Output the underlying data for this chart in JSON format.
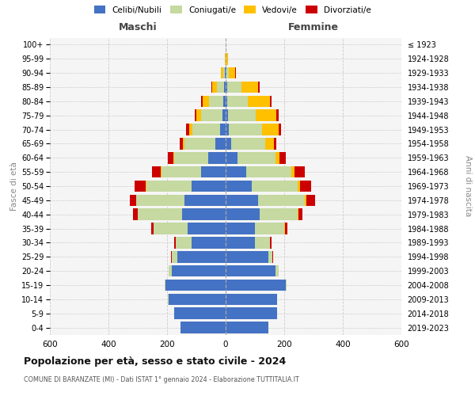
{
  "age_groups": [
    "0-4",
    "5-9",
    "10-14",
    "15-19",
    "20-24",
    "25-29",
    "30-34",
    "35-39",
    "40-44",
    "45-49",
    "50-54",
    "55-59",
    "60-64",
    "65-69",
    "70-74",
    "75-79",
    "80-84",
    "85-89",
    "90-94",
    "95-99",
    "100+"
  ],
  "birth_years": [
    "2019-2023",
    "2014-2018",
    "2009-2013",
    "2004-2008",
    "1999-2003",
    "1994-1998",
    "1989-1993",
    "1984-1988",
    "1979-1983",
    "1974-1978",
    "1969-1973",
    "1964-1968",
    "1959-1963",
    "1954-1958",
    "1949-1953",
    "1944-1948",
    "1939-1943",
    "1934-1938",
    "1929-1933",
    "1924-1928",
    "≤ 1923"
  ],
  "maschi": {
    "celibi": [
      155,
      175,
      195,
      205,
      185,
      165,
      115,
      130,
      150,
      140,
      115,
      85,
      60,
      35,
      18,
      10,
      8,
      5,
      2,
      0,
      0
    ],
    "coniugati": [
      0,
      2,
      2,
      2,
      10,
      20,
      55,
      115,
      150,
      165,
      155,
      135,
      115,
      105,
      95,
      75,
      50,
      25,
      5,
      0,
      0
    ],
    "vedovi": [
      0,
      0,
      0,
      0,
      0,
      0,
      0,
      0,
      1,
      1,
      2,
      2,
      4,
      5,
      10,
      15,
      20,
      15,
      8,
      2,
      0
    ],
    "divorziati": [
      0,
      0,
      0,
      0,
      0,
      2,
      5,
      10,
      15,
      20,
      40,
      30,
      18,
      12,
      12,
      5,
      5,
      3,
      2,
      0,
      0
    ]
  },
  "femmine": {
    "nubili": [
      145,
      175,
      175,
      205,
      170,
      145,
      100,
      100,
      115,
      110,
      90,
      70,
      40,
      20,
      10,
      8,
      5,
      5,
      2,
      0,
      0
    ],
    "coniugate": [
      0,
      2,
      2,
      2,
      10,
      15,
      50,
      100,
      130,
      160,
      155,
      155,
      130,
      115,
      115,
      95,
      70,
      50,
      10,
      2,
      0
    ],
    "vedove": [
      0,
      0,
      0,
      0,
      0,
      0,
      2,
      2,
      3,
      5,
      8,
      10,
      15,
      30,
      55,
      70,
      75,
      55,
      20,
      5,
      0
    ],
    "divorziate": [
      0,
      0,
      0,
      0,
      0,
      2,
      5,
      10,
      15,
      30,
      40,
      35,
      20,
      8,
      10,
      8,
      8,
      5,
      2,
      0,
      0
    ]
  },
  "colors": {
    "celibi": "#4472c4",
    "coniugati": "#c5d9a0",
    "vedovi": "#ffc000",
    "divorziati": "#cc0000"
  },
  "legend_labels": [
    "Celibi/Nubili",
    "Coniugati/e",
    "Vedovi/e",
    "Divorziati/e"
  ],
  "title": "Popolazione per età, sesso e stato civile - 2024",
  "subtitle": "COMUNE DI BARANZATE (MI) - Dati ISTAT 1° gennaio 2024 - Elaborazione TUTTITALIA.IT",
  "label_maschi": "Maschi",
  "label_femmine": "Femmine",
  "ylabel_left": "Fasce di età",
  "ylabel_right": "Anni di nascita",
  "xlim": 600,
  "background_color": "#ffffff",
  "plot_bg": "#f5f5f5"
}
